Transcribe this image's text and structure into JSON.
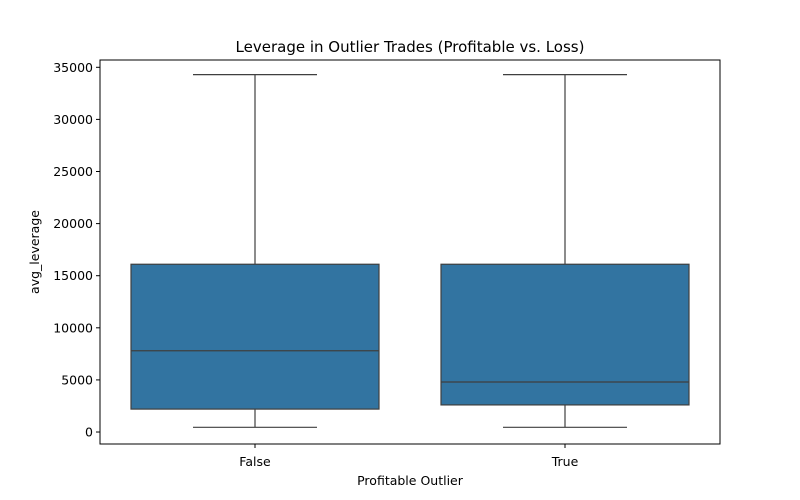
{
  "chart_data": {
    "type": "box",
    "title": "Leverage in Outlier Trades (Profitable vs. Loss)",
    "xlabel": "Profitable Outlier",
    "ylabel": "avg_leverage",
    "ylim": [
      -1150,
      35700
    ],
    "yticks": [
      0,
      5000,
      10000,
      15000,
      20000,
      25000,
      30000,
      35000
    ],
    "grid": false,
    "box_color": "#3274a1",
    "line_color": "#3f3f3f",
    "categories": [
      "False",
      "True"
    ],
    "boxes": [
      {
        "category": "False",
        "whisker_low": 450,
        "q1": 2200,
        "median": 7800,
        "q3": 16100,
        "whisker_high": 34300
      },
      {
        "category": "True",
        "whisker_low": 450,
        "q1": 2600,
        "median": 4800,
        "q3": 16100,
        "whisker_high": 34300
      }
    ]
  }
}
